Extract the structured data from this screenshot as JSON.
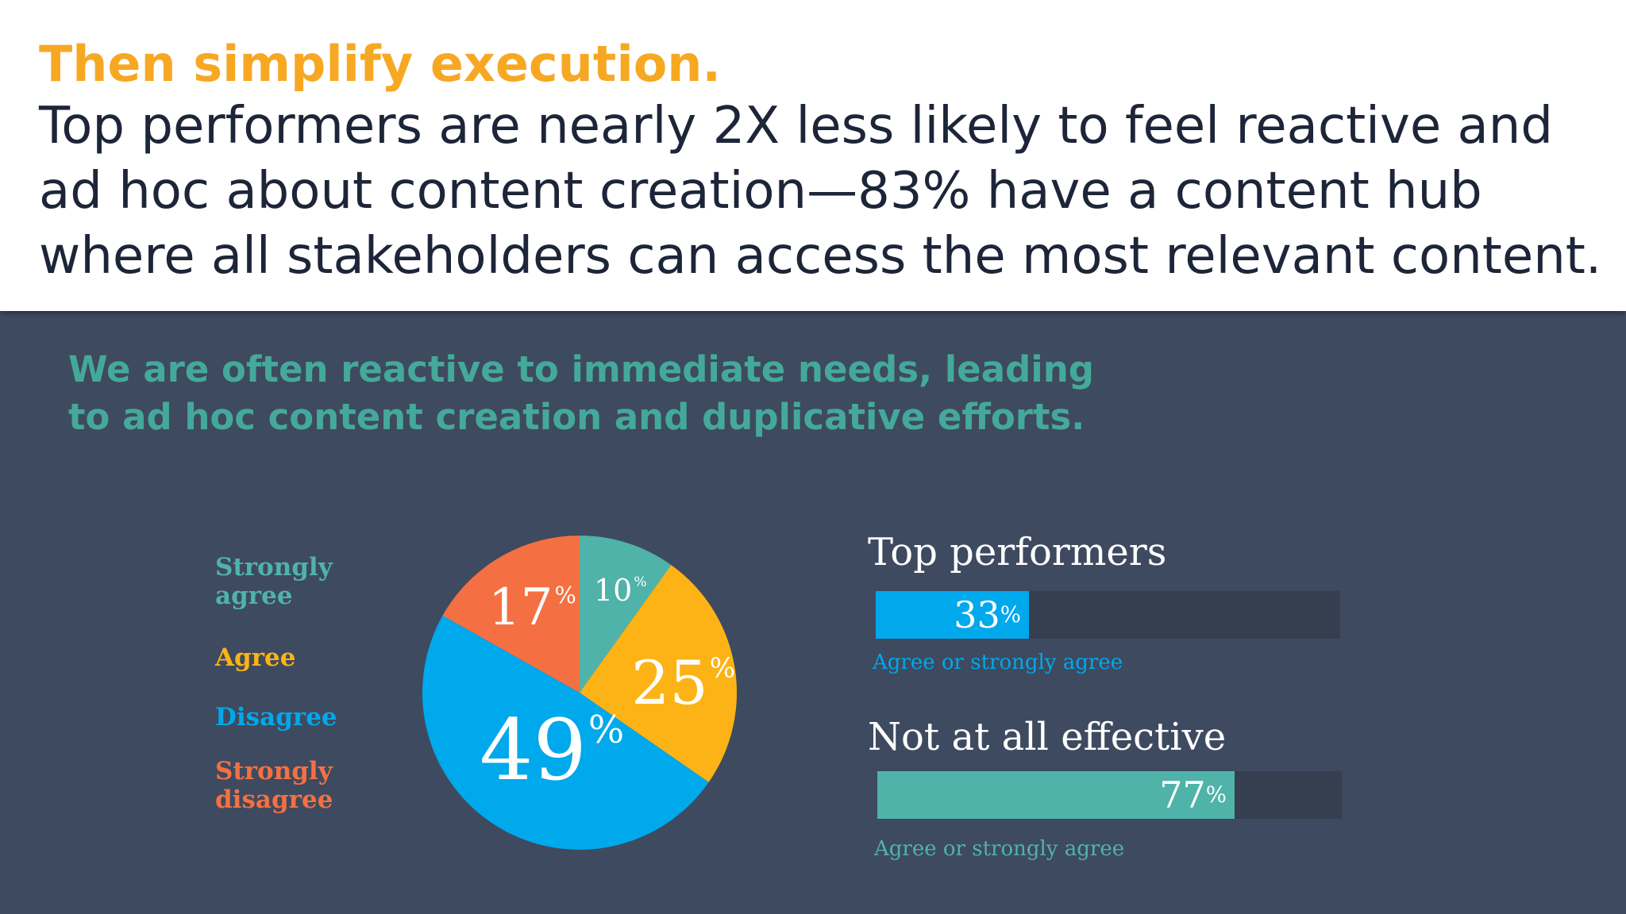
{
  "header": {
    "kicker": "Then simplify execution.",
    "headline_lines": [
      "Top performers are nearly 2X less likely to feel reactive and",
      "ad hoc about content creation—83% have a content hub",
      "where all stakeholders can access the most relevant content."
    ]
  },
  "question_lines": [
    "We are often reactive to immediate needs, leading",
    "to ad hoc content creation and duplicative efforts."
  ],
  "colors": {
    "strongly_agree": "#4fb3a9",
    "agree": "#fdb315",
    "disagree": "#00a8ec",
    "strongly_disagree": "#f47042",
    "track": "#353f4f",
    "background": "#3e4a5f"
  },
  "chart_data": [
    {
      "type": "pie",
      "categories": [
        "Strongly agree",
        "Agree",
        "Disagree",
        "Strongly disagree"
      ],
      "legend_lines": [
        [
          "Strongly",
          "agree"
        ],
        [
          "Agree"
        ],
        [
          "Disagree"
        ],
        [
          "Strongly",
          "disagree"
        ]
      ],
      "values": [
        10,
        25,
        49,
        17
      ],
      "value_labels": [
        "10",
        "25",
        "49",
        "17"
      ],
      "unit": "%",
      "legend_placement": "left"
    },
    {
      "type": "bar",
      "orientation": "horizontal",
      "categories": [
        "Top performers",
        "Not at all effective"
      ],
      "values": [
        33,
        77
      ],
      "value_labels": [
        "33",
        "77"
      ],
      "unit": "%",
      "captions": [
        "Agree or strongly agree",
        "Agree or strongly agree"
      ],
      "xlim": [
        0,
        100
      ]
    }
  ]
}
